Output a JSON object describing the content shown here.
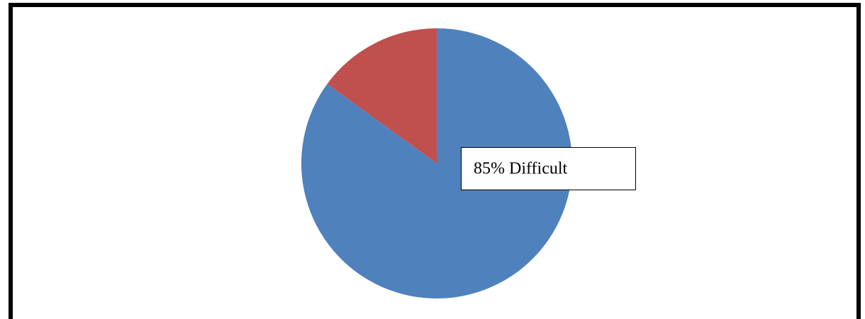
{
  "chart_data": {
    "type": "pie",
    "values": [
      85,
      15
    ],
    "value_labels": [
      "85% Difficult",
      null
    ],
    "colors": [
      "#4f81bd",
      "#c0504d"
    ]
  }
}
